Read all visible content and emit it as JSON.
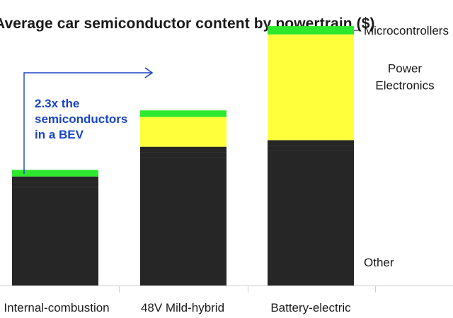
{
  "chart_data": {
    "type": "bar",
    "stacked": true,
    "title": "Average car semiconductor content by powertrain ($)",
    "categories": [
      "Internal-combustion",
      "48V Mild-hybrid",
      "Battery-electric"
    ],
    "series": [
      {
        "name": "Other",
        "color": "#262626",
        "values": [
          33,
          42,
          44
        ]
      },
      {
        "name": "Power Electronics",
        "color": "#ffff3c",
        "values": [
          0,
          9,
          32
        ]
      },
      {
        "name": "Microcontrollers",
        "color": "#2ee82e",
        "values": [
          2,
          2,
          2.5
        ]
      }
    ],
    "segment_labels": [
      "Other",
      "Power\nElectronics",
      "Microcontrollers"
    ],
    "ylim": [
      0,
      80
    ],
    "grid": false,
    "annotation": {
      "text": [
        "2.3x the",
        "semiconductors",
        "in a BEV"
      ],
      "color": "#1a44c8"
    }
  }
}
